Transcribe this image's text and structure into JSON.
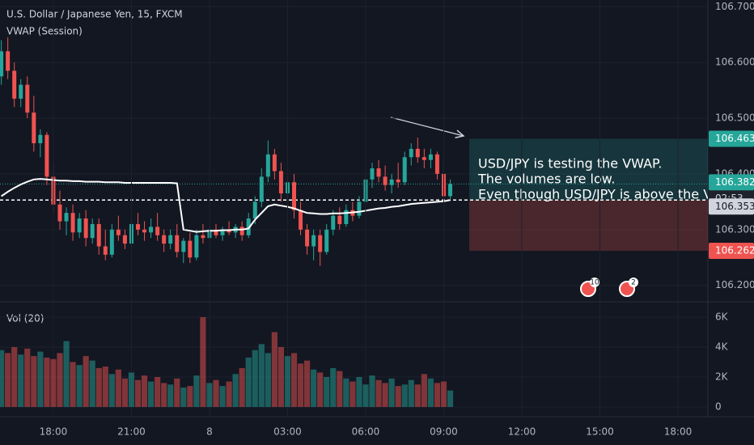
{
  "chart_data": [
    {
      "type": "candlestick",
      "title": "U.S. Dollar / Japanese Yen, 15, FXCM",
      "open": [
        106.575,
        106.62,
        106.585,
        106.535,
        106.56,
        106.51,
        106.455,
        106.47,
        106.395,
        106.345,
        106.315,
        106.33,
        106.295,
        106.32,
        106.285,
        106.31,
        106.27,
        106.255,
        106.3,
        106.29,
        106.275,
        106.31,
        106.3,
        106.295,
        106.305,
        106.29,
        106.275,
        106.29,
        106.26,
        106.28,
        106.25,
        106.29,
        106.285,
        106.3,
        106.29,
        106.3,
        106.295,
        106.305,
        106.29,
        106.32,
        106.35,
        106.395,
        106.435,
        106.405,
        106.365,
        106.385,
        106.335,
        106.3,
        106.27,
        106.29,
        106.26,
        106.3,
        106.325,
        106.31,
        106.335,
        106.325,
        106.35,
        106.39,
        106.41,
        106.395,
        106.38,
        106.39,
        106.385,
        106.43,
        106.445,
        106.43,
        106.425,
        106.435,
        106.4,
        106.36
      ],
      "high": [
        106.64,
        106.645,
        106.6,
        106.57,
        106.575,
        106.54,
        106.48,
        106.475,
        106.42,
        106.37,
        106.34,
        106.345,
        106.33,
        106.335,
        106.32,
        106.32,
        106.3,
        106.31,
        106.325,
        106.3,
        106.32,
        106.33,
        106.315,
        106.32,
        106.33,
        106.3,
        106.3,
        106.31,
        106.285,
        106.295,
        106.3,
        106.31,
        106.305,
        106.31,
        106.305,
        106.315,
        106.31,
        106.315,
        106.33,
        106.36,
        106.41,
        106.46,
        106.445,
        106.42,
        106.395,
        106.4,
        106.35,
        106.31,
        106.3,
        106.3,
        106.31,
        106.335,
        106.34,
        106.345,
        106.35,
        106.36,
        106.4,
        106.42,
        106.425,
        106.415,
        106.4,
        106.42,
        106.44,
        106.455,
        106.465,
        106.445,
        106.445,
        106.44,
        106.42,
        106.39
      ],
      "low": [
        106.56,
        106.57,
        106.52,
        106.52,
        106.5,
        106.44,
        106.43,
        106.38,
        106.33,
        106.3,
        106.29,
        106.28,
        106.285,
        106.27,
        106.275,
        106.255,
        106.245,
        106.25,
        106.28,
        106.265,
        106.27,
        106.29,
        106.28,
        106.285,
        106.28,
        106.26,
        106.265,
        106.25,
        106.24,
        106.24,
        106.245,
        106.275,
        106.28,
        106.285,
        106.28,
        106.29,
        106.285,
        106.28,
        106.285,
        106.31,
        106.34,
        106.385,
        106.39,
        106.35,
        106.35,
        106.32,
        106.29,
        106.255,
        106.245,
        106.235,
        106.255,
        106.29,
        106.3,
        106.305,
        106.315,
        106.32,
        106.345,
        106.375,
        106.385,
        106.37,
        106.365,
        106.375,
        106.38,
        106.415,
        106.42,
        106.41,
        106.41,
        106.39,
        106.355,
        106.355
      ],
      "close": [
        106.62,
        106.585,
        106.535,
        106.56,
        106.51,
        106.455,
        106.47,
        106.395,
        106.345,
        106.315,
        106.33,
        106.295,
        106.32,
        106.285,
        106.31,
        106.27,
        106.255,
        106.3,
        106.29,
        106.275,
        106.31,
        106.3,
        106.295,
        106.305,
        106.29,
        106.275,
        106.29,
        106.26,
        106.28,
        106.25,
        106.29,
        106.285,
        106.3,
        106.29,
        106.3,
        106.295,
        106.305,
        106.29,
        106.32,
        106.35,
        106.395,
        106.435,
        106.405,
        106.365,
        106.385,
        106.335,
        106.3,
        106.27,
        106.29,
        106.26,
        106.3,
        106.325,
        106.31,
        106.335,
        106.325,
        106.35,
        106.39,
        106.41,
        106.395,
        106.38,
        106.39,
        106.385,
        106.43,
        106.445,
        106.43,
        106.425,
        106.435,
        106.4,
        106.36,
        106.382
      ],
      "up_color": "#26a69a",
      "down_color": "#ef5350",
      "series": [
        {
          "name": "VWAP (Session)",
          "color": "#ffffff",
          "values": [
            106.36,
            106.368,
            106.375,
            106.381,
            106.386,
            106.39,
            106.391,
            106.39,
            106.389,
            106.388,
            106.388,
            106.387,
            106.387,
            106.386,
            106.386,
            106.386,
            106.385,
            106.385,
            106.385,
            106.384,
            106.384,
            106.384,
            106.384,
            106.384,
            106.384,
            106.384,
            106.384,
            106.383,
            106.3,
            106.298,
            106.296,
            106.297,
            106.298,
            106.298,
            106.299,
            106.299,
            106.3,
            106.3,
            106.302,
            106.318,
            106.33,
            106.342,
            106.345,
            106.343,
            106.341,
            106.338,
            106.334,
            106.33,
            106.329,
            106.328,
            106.328,
            106.329,
            106.329,
            106.33,
            106.331,
            106.332,
            106.334,
            106.336,
            106.338,
            106.339,
            106.341,
            106.342,
            106.344,
            106.346,
            106.347,
            106.348,
            106.349,
            106.35,
            106.351,
            106.353
          ]
        }
      ],
      "ylim": [
        106.172,
        106.712
      ],
      "yticks": [
        {
          "value": 106.2,
          "label": "106.200"
        },
        {
          "value": 106.3,
          "label": "106.300"
        },
        {
          "value": 106.4,
          "label": "106.400"
        },
        {
          "value": 106.5,
          "label": "106.500"
        },
        {
          "value": 106.6,
          "label": "106.600"
        },
        {
          "value": 106.7,
          "label": "106.700"
        }
      ],
      "xlim": [
        -0.2,
        108.6
      ],
      "xticks": [
        {
          "value": 8,
          "label": "18:00"
        },
        {
          "value": 20,
          "label": "21:00"
        },
        {
          "value": 32,
          "label": "8"
        },
        {
          "value": 44,
          "label": "03:00"
        },
        {
          "value": 56,
          "label": "06:00"
        },
        {
          "value": 68,
          "label": "09:00"
        },
        {
          "value": 80,
          "label": "12:00"
        },
        {
          "value": 92,
          "label": "15:00"
        },
        {
          "value": 104,
          "label": "18:00"
        }
      ],
      "countdown": "02:53",
      "position": {
        "target": 106.463,
        "entry": 106.353,
        "stop": 106.262
      },
      "annotation": [
        "USD/JPY is testing the VWAP.",
        "The volumes are low.",
        "Even though USD/JPY is above the V"
      ],
      "events": [
        "10",
        "2"
      ]
    },
    {
      "type": "bar",
      "title": "Vol (20)",
      "values": [
        3800,
        3600,
        4000,
        3500,
        3900,
        3400,
        3700,
        3300,
        3200,
        3600,
        4400,
        3000,
        2800,
        3400,
        3100,
        2600,
        2700,
        2200,
        2500,
        1900,
        2300,
        1800,
        2100,
        1700,
        2000,
        1600,
        1500,
        1900,
        1300,
        1400,
        2100,
        6000,
        1600,
        1800,
        1400,
        1700,
        2200,
        2600,
        3300,
        3800,
        4200,
        3600,
        5000,
        4000,
        3400,
        3600,
        2900,
        3100,
        2500,
        2300,
        2000,
        2600,
        2400,
        1900,
        1700,
        2000,
        1500,
        2100,
        1800,
        1600,
        1900,
        1400,
        1500,
        1800,
        1500,
        2200,
        1900,
        1600,
        1700,
        1100
      ],
      "ylim": [
        -650,
        6650
      ],
      "yticks": [
        0,
        {
          "value": 2000,
          "label": "2K"
        },
        {
          "value": 4000,
          "label": "4K"
        },
        {
          "value": 6000,
          "label": "6K"
        }
      ]
    }
  ]
}
